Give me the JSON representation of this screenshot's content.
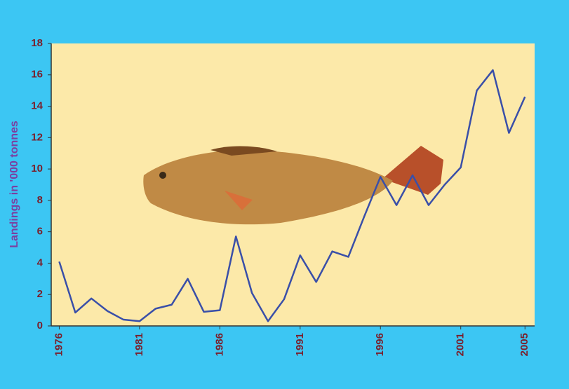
{
  "chart_data": {
    "type": "line",
    "y_label": "Landings in '000 tonnes",
    "x": [
      1976,
      1977,
      1978,
      1979,
      1980,
      1981,
      1982,
      1983,
      1984,
      1985,
      1986,
      1987,
      1988,
      1989,
      1990,
      1991,
      1992,
      1993,
      1994,
      1995,
      1996,
      1997,
      1998,
      1999,
      2000,
      2001,
      2002,
      2003,
      2004,
      2005
    ],
    "series": [
      {
        "color": "#3a4fa8",
        "values": [
          4.1,
          0.85,
          1.75,
          0.95,
          0.4,
          0.3,
          1.1,
          1.35,
          3.0,
          0.9,
          1.0,
          5.7,
          2.1,
          0.3,
          1.7,
          4.5,
          2.8,
          4.75,
          4.4,
          7.0,
          9.5,
          7.7,
          9.6,
          7.7,
          9.0,
          10.1,
          15.0,
          16.3,
          12.3,
          14.6
        ]
      }
    ],
    "xlim": [
      1975.5,
      2005.6
    ],
    "xticks": [
      1976,
      1981,
      1986,
      1991,
      1996,
      2001,
      2005
    ],
    "ylim": [
      0,
      18
    ],
    "yticks": [
      0,
      2,
      4,
      6,
      8,
      10,
      12,
      14,
      16,
      18
    ],
    "grid": false
  }
}
